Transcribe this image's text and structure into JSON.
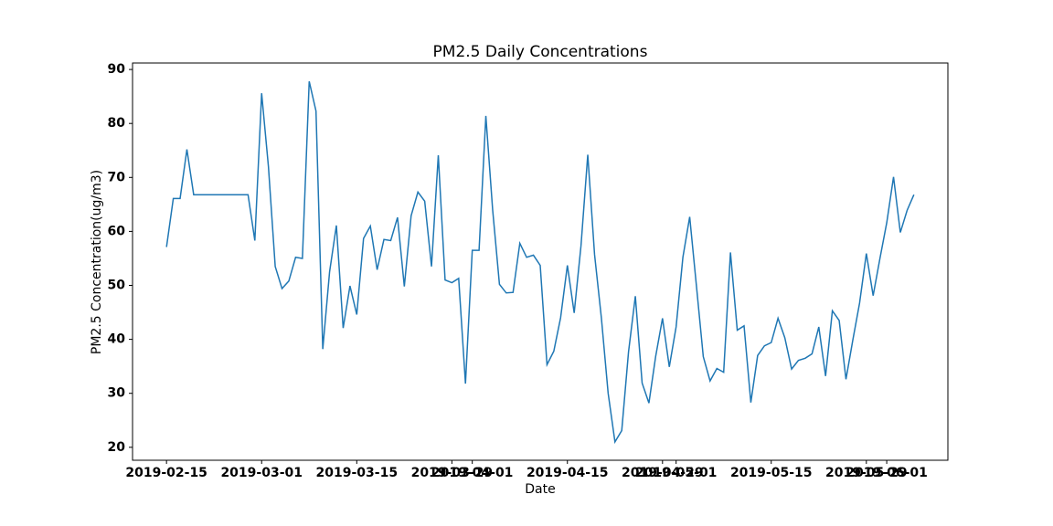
{
  "chart_data": {
    "type": "line",
    "title": "PM2.5 Daily Concentrations",
    "x_label": "Date",
    "y_label": "PM2.5 Concentration(ug/m3)",
    "x": [
      "2019-02-15",
      "2019-02-16",
      "2019-02-17",
      "2019-02-18",
      "2019-02-19",
      "2019-02-20",
      "2019-02-21",
      "2019-02-22",
      "2019-02-23",
      "2019-02-24",
      "2019-02-25",
      "2019-02-26",
      "2019-02-27",
      "2019-02-28",
      "2019-03-01",
      "2019-03-02",
      "2019-03-03",
      "2019-03-04",
      "2019-03-05",
      "2019-03-06",
      "2019-03-07",
      "2019-03-08",
      "2019-03-09",
      "2019-03-10",
      "2019-03-11",
      "2019-03-12",
      "2019-03-13",
      "2019-03-14",
      "2019-03-15",
      "2019-03-16",
      "2019-03-17",
      "2019-03-18",
      "2019-03-19",
      "2019-03-20",
      "2019-03-21",
      "2019-03-22",
      "2019-03-23",
      "2019-03-24",
      "2019-03-25",
      "2019-03-26",
      "2019-03-27",
      "2019-03-28",
      "2019-03-29",
      "2019-03-30",
      "2019-03-31",
      "2019-04-01",
      "2019-04-02",
      "2019-04-03",
      "2019-04-04",
      "2019-04-05",
      "2019-04-06",
      "2019-04-07",
      "2019-04-08",
      "2019-04-09",
      "2019-04-10",
      "2019-04-11",
      "2019-04-12",
      "2019-04-13",
      "2019-04-14",
      "2019-04-15",
      "2019-04-16",
      "2019-04-17",
      "2019-04-18",
      "2019-04-19",
      "2019-04-20",
      "2019-04-21",
      "2019-04-22",
      "2019-04-23",
      "2019-04-24",
      "2019-04-25",
      "2019-04-26",
      "2019-04-27",
      "2019-04-28",
      "2019-04-29",
      "2019-04-30",
      "2019-05-01",
      "2019-05-02",
      "2019-05-03",
      "2019-05-04",
      "2019-05-05",
      "2019-05-06",
      "2019-05-07",
      "2019-05-08",
      "2019-05-09",
      "2019-05-10",
      "2019-05-11",
      "2019-05-12",
      "2019-05-13",
      "2019-05-14",
      "2019-05-15",
      "2019-05-16",
      "2019-05-17",
      "2019-05-18",
      "2019-05-19",
      "2019-05-20",
      "2019-05-21",
      "2019-05-22",
      "2019-05-23",
      "2019-05-24",
      "2019-05-25",
      "2019-05-26",
      "2019-05-27",
      "2019-05-28",
      "2019-05-29",
      "2019-05-30",
      "2019-05-31",
      "2019-06-01",
      "2019-06-02",
      "2019-06-03",
      "2019-06-04",
      "2019-06-05"
    ],
    "series": [
      {
        "name": "PM2.5",
        "color": "#1f77b4",
        "values": [
          57.1,
          66.1,
          66.1,
          75.2,
          66.8,
          66.8,
          66.8,
          66.8,
          66.8,
          66.8,
          66.8,
          66.8,
          66.8,
          58.3,
          85.6,
          72,
          53.5,
          49.4,
          50.8,
          55.2,
          55,
          87.8,
          82.3,
          38.2,
          52.5,
          61.1,
          42.1,
          49.9,
          44.6,
          58.7,
          61,
          52.9,
          58.5,
          58.3,
          62.6,
          49.8,
          62.9,
          67.3,
          65.6,
          53.5,
          74.1,
          51,
          50.5,
          51.3,
          31.8,
          56.5,
          56.5,
          81.4,
          64,
          50.2,
          48.6,
          48.7,
          57.8,
          55.2,
          55.6,
          53.7,
          35.3,
          37.8,
          44,
          53.7,
          44.9,
          57.3,
          74.2,
          55.7,
          44,
          30,
          21,
          23.1,
          37.7,
          48,
          31.9,
          28.2,
          36.9,
          43.9,
          34.9,
          42.3,
          55.2,
          62.7,
          49.8,
          36.8,
          32.3,
          34.6,
          33.9,
          56.1,
          41.7,
          42.5,
          28.3,
          37,
          38.8,
          39.4,
          43.9,
          40.3,
          34.5,
          36.1,
          36.5,
          37.3,
          42.3,
          33.2,
          45.3,
          43.5,
          32.6,
          39.8,
          46.7,
          55.9,
          48.1,
          55,
          61.6,
          70.1,
          59.8,
          63.9,
          66.8
        ]
      }
    ],
    "xlim": [
      "2019-02-10",
      "2019-06-10"
    ],
    "xticks": [
      "2019-02-15",
      "2019-03-01",
      "2019-03-15",
      "2019-03-29",
      "2019-04-01",
      "2019-04-15",
      "2019-04-29",
      "2019-05-01",
      "2019-05-15",
      "2019-05-29",
      "2019-06-01"
    ],
    "ylim": [
      17.6,
      91.2
    ],
    "yticks": [
      20,
      30,
      40,
      50,
      60,
      70,
      80,
      90
    ],
    "grid": false
  }
}
